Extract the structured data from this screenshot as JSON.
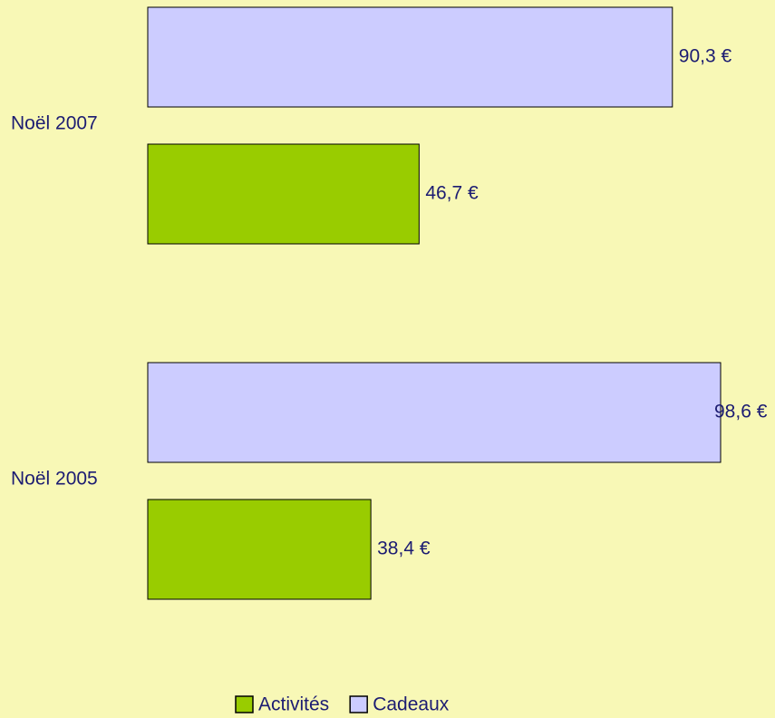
{
  "chart_data": {
    "type": "hbar",
    "categories": [
      "Noël 2007",
      "Noël 2005"
    ],
    "series": [
      {
        "name": "Cadeaux",
        "color": "#ccccff",
        "values": [
          90.3,
          98.6
        ],
        "value_labels": [
          "90,3 €",
          "98,6 €"
        ]
      },
      {
        "name": "Activités",
        "color": "#99cc00",
        "values": [
          46.7,
          38.4
        ],
        "value_labels": [
          "46,7 €",
          "38,4 €"
        ]
      }
    ],
    "legend": [
      "Activités",
      "Cadeaux"
    ],
    "legend_position": "bottom"
  }
}
